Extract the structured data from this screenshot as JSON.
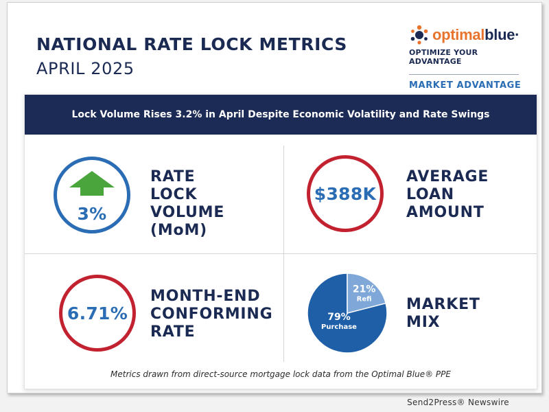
{
  "header": {
    "title": "NATIONAL RATE LOCK METRICS",
    "subtitle": "APRIL 2025"
  },
  "logo": {
    "brand_part1": "optimal",
    "brand_part2": "blue",
    "brand_mark": "·",
    "tagline": "OPTIMIZE YOUR ADVANTAGE",
    "section": "MARKET ADVANTAGE"
  },
  "banner": {
    "text": "Lock Volume Rises 3.2% in April Despite Economic Volatility and Rate Swings"
  },
  "metrics": {
    "rate_lock_volume": {
      "value": "3%",
      "label_lines": [
        "RATE LOCK",
        "VOLUME",
        "(MoM)"
      ],
      "icon": "up-arrow-icon"
    },
    "average_loan": {
      "value": "$388K",
      "label_lines": [
        "AVERAGE",
        "LOAN",
        "AMOUNT"
      ]
    },
    "conforming_rate": {
      "value": "6.71%",
      "label_lines": [
        "MONTH-END",
        "CONFORMING",
        "RATE"
      ]
    },
    "market_mix": {
      "label_lines": [
        "MARKET",
        "MIX"
      ]
    }
  },
  "chart_data": {
    "type": "pie",
    "title": "MARKET MIX",
    "categories": [
      "Purchase",
      "Refi"
    ],
    "values": [
      79,
      21
    ],
    "value_labels": [
      "79%",
      "21%"
    ],
    "colors": [
      "#1f5fa8",
      "#7fa8d8"
    ]
  },
  "footer": {
    "note": "Metrics drawn from direct-source mortgage lock data from the Optimal Blue® PPE"
  },
  "credit": {
    "text": "Send2Press® Newswire"
  },
  "colors": {
    "navy": "#1c2b55",
    "accent_blue": "#2b6db4",
    "accent_red": "#c2212f",
    "arrow_green": "#4aa63c",
    "brand_orange": "#e8732c"
  }
}
